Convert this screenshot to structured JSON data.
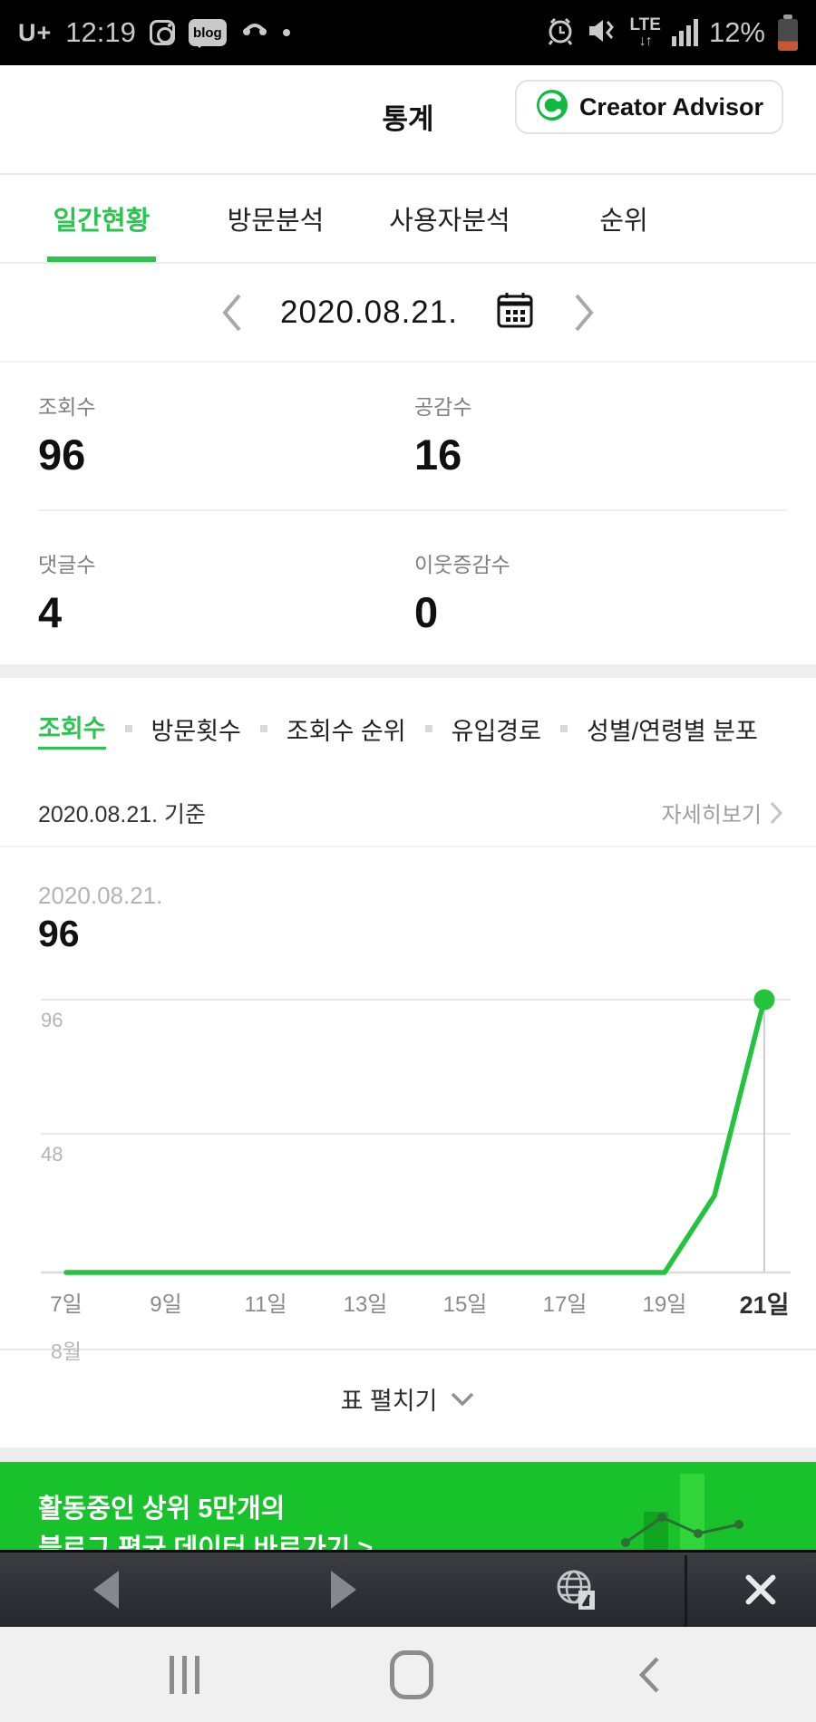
{
  "status_bar": {
    "carrier": "U+",
    "time": "12:19",
    "blog_icon_text": "blog",
    "network_type": "LTE",
    "network_arrows": "↓↑",
    "battery_percent": "12%",
    "left_icons": [
      "instagram-icon",
      "blog-icon",
      "whowho-call-icon",
      "notification-dot"
    ],
    "right_icons": [
      "alarm-icon",
      "vibrate-icon",
      "lte-icon",
      "signal-icon",
      "battery-icon"
    ]
  },
  "header": {
    "title": "통계",
    "advisor_button": {
      "label": "Creator Advisor"
    }
  },
  "main_tabs": [
    {
      "label": "일간현황",
      "active": true
    },
    {
      "label": "방문분석",
      "active": false
    },
    {
      "label": "사용자분석",
      "active": false
    },
    {
      "label": "순위",
      "active": false
    }
  ],
  "date_nav": {
    "date": "2020.08.21."
  },
  "summary": [
    {
      "label": "조회수",
      "value": "96"
    },
    {
      "label": "공감수",
      "value": "16"
    },
    {
      "label": "댓글수",
      "value": "4"
    },
    {
      "label": "이웃증감수",
      "value": "0"
    }
  ],
  "metric_tabs": [
    {
      "label": "조회수",
      "active": true
    },
    {
      "label": "방문횟수",
      "active": false
    },
    {
      "label": "조회수 순위",
      "active": false
    },
    {
      "label": "유입경로",
      "active": false
    },
    {
      "label": "성별/연령별 분포",
      "active": false
    }
  ],
  "reference": {
    "base": "2020.08.21. 기준",
    "more": "자세히보기"
  },
  "chart_data": {
    "type": "line",
    "selected_date": "2020.08.21.",
    "selected_value": "96",
    "x_days": [
      7,
      8,
      9,
      10,
      11,
      12,
      13,
      14,
      15,
      16,
      17,
      18,
      19,
      20,
      21
    ],
    "values": [
      0,
      0,
      0,
      0,
      0,
      0,
      0,
      0,
      0,
      0,
      0,
      0,
      0,
      27,
      96
    ],
    "tick_labels": [
      "7일",
      "9일",
      "11일",
      "13일",
      "15일",
      "17일",
      "19일",
      "21일"
    ],
    "ytick_labels": [
      "96",
      "48"
    ],
    "y_max": 96,
    "ylim": [
      0,
      96
    ],
    "month_label": "8월",
    "line_color": "#24c33e",
    "grid": true,
    "highlight_last_point": true
  },
  "table_toggle": {
    "label": "표 펼치기"
  },
  "banner": {
    "line1": "활동중인 상위 5만개의",
    "line2": "블로그 평균 데이터 바로가기 >"
  },
  "browser_toolbar": {
    "icons": [
      "back-arrow-icon",
      "forward-arrow-icon",
      "globe-shortcut-icon",
      "close-icon"
    ]
  },
  "nav_bar": {
    "icons": [
      "recents-icon",
      "home-icon",
      "back-icon"
    ]
  },
  "colors": {
    "accent_green": "#2dc351",
    "banner_green": "#18c22a",
    "chart_line": "#24c33e",
    "battery_low": "#c75635"
  }
}
